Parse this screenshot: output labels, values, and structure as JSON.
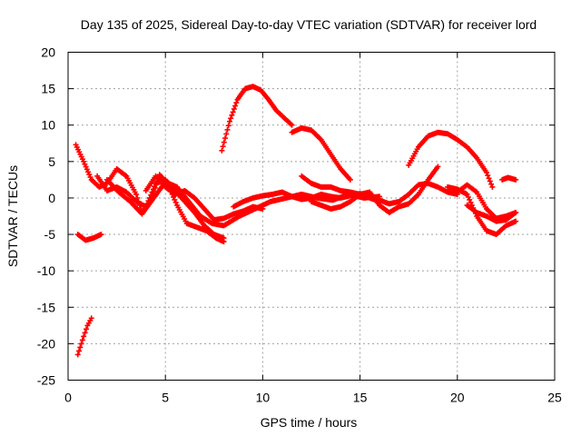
{
  "chart_data": {
    "type": "scatter",
    "title": "Day 135 of 2025, Sidereal Day-to-day VTEC variation (SDTVAR) for receiver lord",
    "xlabel": "GPS time / hours",
    "ylabel": "SDTVAR / TECUs",
    "xlim": [
      0,
      25
    ],
    "ylim": [
      -25,
      20
    ],
    "xticks": [
      0,
      5,
      10,
      15,
      20,
      25
    ],
    "yticks": [
      -25,
      -20,
      -15,
      -10,
      -5,
      0,
      5,
      10,
      15,
      20
    ],
    "grid": true,
    "marker": "plus",
    "color": "#ff0000",
    "series": [
      {
        "name": "arc-1",
        "x": [
          0.5,
          0.8,
          1.0,
          1.2
        ],
        "y": [
          -21.5,
          -19.0,
          -17.5,
          -16.5
        ]
      },
      {
        "name": "arc-2",
        "x": [
          0.5,
          0.9,
          1.3,
          1.7
        ],
        "y": [
          -5.0,
          -5.8,
          -5.5,
          -5.0
        ]
      },
      {
        "name": "arc-3",
        "x": [
          0.4,
          0.8,
          1.2,
          1.6,
          2.0,
          2.5,
          3.0,
          3.5,
          3.8,
          4.3,
          4.7,
          5.1,
          5.6,
          6.1,
          6.6,
          7.1,
          7.6,
          8.0
        ],
        "y": [
          7.3,
          5.0,
          2.5,
          1.5,
          2.0,
          4.0,
          3.0,
          0.5,
          -2.0,
          0.0,
          3.2,
          2.0,
          -1.0,
          -3.5,
          -4.0,
          -4.5,
          -5.5,
          -6.0
        ]
      },
      {
        "name": "arc-4",
        "x": [
          1.5,
          2.0,
          2.5,
          3.0,
          3.5,
          4.0,
          4.5,
          5.0,
          5.5,
          6.0,
          6.5,
          7.0,
          7.5,
          8.0
        ],
        "y": [
          3.0,
          1.0,
          1.5,
          0.8,
          -0.5,
          -1.2,
          2.0,
          2.5,
          1.0,
          -0.5,
          -2.0,
          -3.8,
          -5.0,
          -5.5
        ]
      },
      {
        "name": "arc-5",
        "x": [
          2.0,
          2.6,
          3.2,
          3.8,
          4.4,
          5.0,
          5.6,
          6.2,
          6.8,
          7.4,
          8.0,
          8.8,
          9.6,
          10.4,
          11.2,
          12.0,
          12.8,
          13.6,
          14.4,
          15.2,
          16.0
        ],
        "y": [
          2.5,
          0.8,
          -0.5,
          -2.2,
          0.0,
          2.2,
          1.5,
          -0.5,
          -2.5,
          -3.5,
          -3.8,
          -2.5,
          -1.5,
          -0.5,
          0.0,
          0.5,
          0.0,
          -0.3,
          0.5,
          0.0,
          0.2
        ]
      },
      {
        "name": "arc-6",
        "x": [
          4.0,
          4.5,
          5.0,
          5.5,
          6.0,
          6.5,
          7.0,
          7.5,
          8.0,
          8.5,
          9.0,
          9.5,
          10.0
        ],
        "y": [
          1.0,
          3.0,
          1.5,
          0.5,
          1.0,
          0.0,
          -1.5,
          -3.0,
          -2.8,
          -2.2,
          -1.8,
          -1.2,
          -1.5
        ]
      },
      {
        "name": "arc-7",
        "x": [
          7.9,
          8.3,
          8.7,
          9.1,
          9.5,
          9.9,
          10.3,
          10.7,
          11.1,
          11.5
        ],
        "y": [
          6.5,
          10.5,
          13.5,
          15.0,
          15.3,
          14.8,
          13.5,
          12.0,
          11.0,
          10.0
        ]
      },
      {
        "name": "arc-8",
        "x": [
          11.5,
          12.0,
          12.5,
          13.0,
          13.5,
          14.0,
          14.5
        ],
        "y": [
          9.0,
          9.6,
          9.3,
          8.0,
          6.0,
          4.0,
          2.5
        ]
      },
      {
        "name": "arc-9",
        "x": [
          8.5,
          9.0,
          9.5,
          10.0,
          10.5,
          11.0,
          11.5,
          12.0,
          12.5,
          13.0,
          13.5,
          14.0,
          14.5,
          15.0,
          15.5,
          16.0,
          16.5,
          17.0,
          17.5,
          18.0,
          18.5,
          19.0,
          19.5,
          20.0
        ],
        "y": [
          -1.2,
          -0.5,
          0.0,
          0.3,
          0.5,
          0.8,
          0.2,
          -0.2,
          0.0,
          0.5,
          0.2,
          0.0,
          0.3,
          0.6,
          0.2,
          -0.3,
          -0.8,
          -0.5,
          0.5,
          1.8,
          2.0,
          1.5,
          0.8,
          0.5
        ]
      },
      {
        "name": "arc-10",
        "x": [
          12.0,
          12.5,
          13.0,
          13.5,
          14.0,
          14.5,
          15.0,
          15.5,
          16.0
        ],
        "y": [
          3.0,
          2.0,
          1.5,
          1.5,
          1.0,
          0.8,
          0.5,
          0.0,
          -0.5
        ]
      },
      {
        "name": "arc-11",
        "x": [
          12.5,
          13.0,
          13.5,
          14.0,
          14.5,
          15.0,
          15.5,
          16.0,
          16.5,
          17.0,
          17.5,
          18.0,
          18.5,
          19.0
        ],
        "y": [
          -0.5,
          -1.0,
          -1.5,
          -1.2,
          -0.5,
          0.5,
          0.8,
          -1.0,
          -2.0,
          -1.2,
          -0.8,
          0.5,
          2.5,
          4.3
        ]
      },
      {
        "name": "arc-12",
        "x": [
          17.5,
          18.0,
          18.5,
          19.0,
          19.5,
          20.0,
          20.5,
          21.0,
          21.5,
          21.8
        ],
        "y": [
          4.5,
          7.0,
          8.5,
          9.0,
          8.8,
          8.0,
          7.0,
          5.5,
          3.5,
          1.5
        ]
      },
      {
        "name": "arc-13",
        "x": [
          19.5,
          20.0,
          20.5,
          21.0,
          21.5,
          22.0,
          22.5,
          23.0
        ],
        "y": [
          1.5,
          1.2,
          0.5,
          -2.5,
          -4.5,
          -5.0,
          -3.8,
          -3.2
        ]
      },
      {
        "name": "arc-14",
        "x": [
          20.0,
          20.5,
          21.0,
          21.5,
          22.0,
          22.5,
          23.0
        ],
        "y": [
          0.8,
          1.8,
          0.8,
          -1.5,
          -2.8,
          -2.5,
          -2.0
        ]
      },
      {
        "name": "arc-15",
        "x": [
          20.5,
          21.0,
          21.5,
          22.0,
          22.5,
          23.0
        ],
        "y": [
          -1.0,
          -2.0,
          -2.5,
          -3.2,
          -3.0,
          -2.0
        ]
      },
      {
        "name": "arc-16",
        "x": [
          22.3,
          22.6,
          23.0
        ],
        "y": [
          2.5,
          2.8,
          2.5
        ]
      }
    ]
  }
}
